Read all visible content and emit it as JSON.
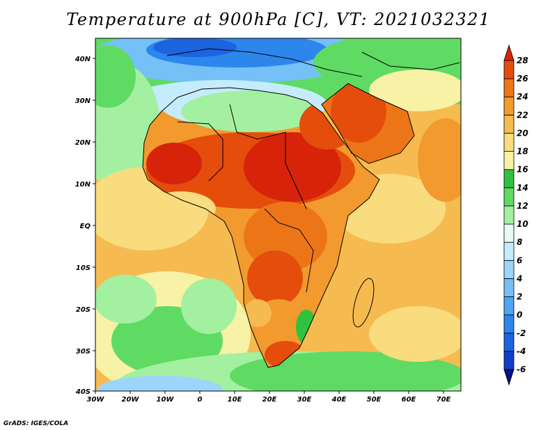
{
  "title": "Temperature at 900hPa [C], VT: 2021032321",
  "credit": "GrADS: IGES/COLA",
  "map": {
    "type": "filled-contour",
    "variable": "Temperature at 900hPa",
    "units": "C",
    "valid_time": "2021032321",
    "lon_range": [
      -30,
      76
    ],
    "lat_range": [
      -40,
      45
    ],
    "lon_ticks": [
      "30W",
      "20W",
      "10W",
      "0",
      "10E",
      "20E",
      "30E",
      "40E",
      "50E",
      "60E",
      "70E"
    ],
    "lat_ticks": [
      "40N",
      "30N",
      "20N",
      "10N",
      "EQ",
      "10S",
      "20S",
      "30S",
      "40S"
    ]
  },
  "colorbar": {
    "levels": [
      "-6",
      "-4",
      "-2",
      "0",
      "2",
      "4",
      "6",
      "8",
      "10",
      "12",
      "14",
      "16",
      "18",
      "20",
      "22",
      "24",
      "26",
      "28"
    ],
    "colors": [
      "#0b0f84",
      "#1040c8",
      "#1c63e0",
      "#2c86ec",
      "#4ea5f2",
      "#74c0f7",
      "#9bd6fa",
      "#c4ecfd",
      "#e7fbf2",
      "#a3f0a0",
      "#5fdb63",
      "#30c23e",
      "#f7f2a6",
      "#f8dc7e",
      "#f6bb50",
      "#f29a2d",
      "#ec7617",
      "#e44d0c",
      "#d6230a"
    ]
  }
}
